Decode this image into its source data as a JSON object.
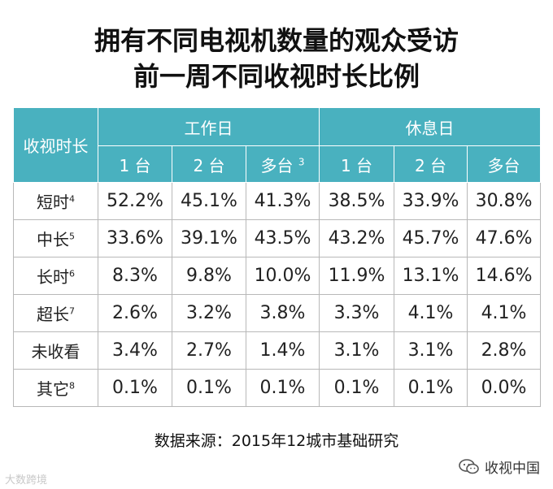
{
  "title": {
    "line1": "拥有不同电视机数量的观众受访",
    "line2": "前一周不同收视时长比例"
  },
  "chart_data": {
    "type": "table",
    "header": {
      "row_header": "收视时长",
      "groups": [
        {
          "label": "工作日",
          "columns": [
            {
              "label": "1 台",
              "sup": ""
            },
            {
              "label": "2 台",
              "sup": ""
            },
            {
              "label": "多台",
              "sup": "3"
            }
          ]
        },
        {
          "label": "休息日",
          "columns": [
            {
              "label": "1 台",
              "sup": ""
            },
            {
              "label": "2 台",
              "sup": ""
            },
            {
              "label": "多台",
              "sup": ""
            }
          ]
        }
      ]
    },
    "rows": [
      {
        "label": "短时",
        "sup": "4",
        "values": [
          "52.2%",
          "45.1%",
          "41.3%",
          "38.5%",
          "33.9%",
          "30.8%"
        ]
      },
      {
        "label": "中长",
        "sup": "5",
        "values": [
          "33.6%",
          "39.1%",
          "43.5%",
          "43.2%",
          "45.7%",
          "47.6%"
        ]
      },
      {
        "label": "长时",
        "sup": "6",
        "values": [
          "8.3%",
          "9.8%",
          "10.0%",
          "11.9%",
          "13.1%",
          "14.6%"
        ]
      },
      {
        "label": "超长",
        "sup": "7",
        "values": [
          "2.6%",
          "3.2%",
          "3.8%",
          "3.3%",
          "4.1%",
          "4.1%"
        ]
      },
      {
        "label": "未收看",
        "sup": "",
        "values": [
          "3.4%",
          "2.7%",
          "1.4%",
          "3.1%",
          "3.1%",
          "2.8%"
        ]
      },
      {
        "label": "其它",
        "sup": "8",
        "values": [
          "0.1%",
          "0.1%",
          "0.1%",
          "0.1%",
          "0.1%",
          "0.0%"
        ]
      }
    ],
    "header_color": "#49b1bf"
  },
  "source": "数据来源：2015年12城市基础研究",
  "watermark_left": "大数跨境",
  "watermark_right": "收视中国",
  "icons": {
    "wechat": "wechat-icon"
  }
}
